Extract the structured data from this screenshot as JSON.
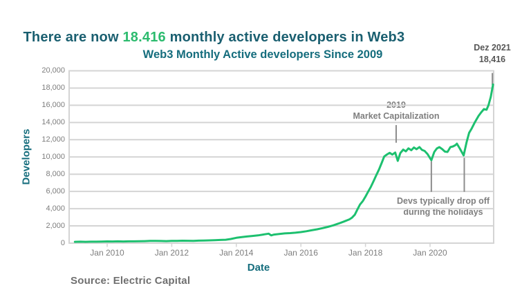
{
  "headline": {
    "part1": "There are now ",
    "highlight": "18.416",
    "part2": " monthly active developers in Web3"
  },
  "source_note": "Source: Electric Capital",
  "colors": {
    "headline_teal": "#1a5f70",
    "headline_green": "#2cbb6e",
    "title_teal": "#156d7d",
    "line_green": "#1dc06f",
    "gridline_gray": "#d4d4d4",
    "tick_gray": "#7d7d7d",
    "annotation_gray": "#8c8c8c",
    "corner_note_gray": "#565656"
  },
  "chart_data": {
    "type": "line",
    "title": "Web3 Monthly Active developers Since 2009",
    "xlabel": "Date",
    "ylabel": "Developers",
    "ylim": [
      0,
      20000
    ],
    "xlim": [
      2008.82,
      2021.97
    ],
    "grid": "horizontal",
    "legend": "none",
    "y_ticks": [
      {
        "value": 0,
        "label": "0"
      },
      {
        "value": 2000,
        "label": "2,000"
      },
      {
        "value": 4000,
        "label": "4,000"
      },
      {
        "value": 6000,
        "label": "6,000"
      },
      {
        "value": 8000,
        "label": "8,000"
      },
      {
        "value": 10000,
        "label": "10,000"
      },
      {
        "value": 12000,
        "label": "12,000"
      },
      {
        "value": 14000,
        "label": "14,000"
      },
      {
        "value": 16000,
        "label": "16,000"
      },
      {
        "value": 18000,
        "label": "18,000"
      },
      {
        "value": 20000,
        "label": "20,000"
      }
    ],
    "x_ticks": [
      {
        "year": 2010,
        "label": "Jan 2010"
      },
      {
        "year": 2012,
        "label": "Jan 2012"
      },
      {
        "year": 2014,
        "label": "Jan 2014"
      },
      {
        "year": 2016,
        "label": "Jan 2016"
      },
      {
        "year": 2018,
        "label": "Jan 2018"
      },
      {
        "year": 2020,
        "label": "Jan 2020"
      }
    ],
    "series": [
      {
        "name": "Web3 monthly active developers",
        "points": [
          [
            2009.0,
            150
          ],
          [
            2009.17,
            165
          ],
          [
            2009.33,
            155
          ],
          [
            2009.5,
            170
          ],
          [
            2009.67,
            165
          ],
          [
            2009.83,
            185
          ],
          [
            2010.0,
            200
          ],
          [
            2010.17,
            190
          ],
          [
            2010.33,
            205
          ],
          [
            2010.5,
            195
          ],
          [
            2010.67,
            210
          ],
          [
            2010.83,
            205
          ],
          [
            2011.0,
            220
          ],
          [
            2011.17,
            235
          ],
          [
            2011.33,
            255
          ],
          [
            2011.5,
            265
          ],
          [
            2011.67,
            245
          ],
          [
            2011.83,
            235
          ],
          [
            2012.0,
            255
          ],
          [
            2012.17,
            265
          ],
          [
            2012.33,
            280
          ],
          [
            2012.5,
            270
          ],
          [
            2012.67,
            265
          ],
          [
            2012.83,
            285
          ],
          [
            2013.0,
            305
          ],
          [
            2013.17,
            320
          ],
          [
            2013.33,
            345
          ],
          [
            2013.5,
            365
          ],
          [
            2013.67,
            390
          ],
          [
            2013.83,
            480
          ],
          [
            2014.0,
            620
          ],
          [
            2014.17,
            700
          ],
          [
            2014.33,
            770
          ],
          [
            2014.5,
            830
          ],
          [
            2014.67,
            900
          ],
          [
            2014.83,
            990
          ],
          [
            2015.0,
            1100
          ],
          [
            2015.08,
            900
          ],
          [
            2015.17,
            990
          ],
          [
            2015.33,
            1060
          ],
          [
            2015.5,
            1130
          ],
          [
            2015.67,
            1160
          ],
          [
            2015.83,
            1210
          ],
          [
            2016.0,
            1280
          ],
          [
            2016.17,
            1380
          ],
          [
            2016.33,
            1490
          ],
          [
            2016.5,
            1600
          ],
          [
            2016.67,
            1740
          ],
          [
            2016.83,
            1880
          ],
          [
            2017.0,
            2060
          ],
          [
            2017.17,
            2280
          ],
          [
            2017.33,
            2500
          ],
          [
            2017.5,
            2760
          ],
          [
            2017.58,
            2950
          ],
          [
            2017.67,
            3300
          ],
          [
            2017.75,
            3900
          ],
          [
            2017.83,
            4480
          ],
          [
            2017.92,
            4900
          ],
          [
            2018.0,
            5400
          ],
          [
            2018.08,
            5950
          ],
          [
            2018.17,
            6550
          ],
          [
            2018.25,
            7200
          ],
          [
            2018.33,
            7850
          ],
          [
            2018.42,
            8550
          ],
          [
            2018.5,
            9300
          ],
          [
            2018.58,
            10050
          ],
          [
            2018.67,
            10300
          ],
          [
            2018.75,
            10480
          ],
          [
            2018.83,
            10280
          ],
          [
            2018.92,
            10520
          ],
          [
            2019.0,
            9550
          ],
          [
            2019.08,
            10450
          ],
          [
            2019.17,
            10850
          ],
          [
            2019.25,
            10650
          ],
          [
            2019.33,
            11000
          ],
          [
            2019.42,
            10780
          ],
          [
            2019.5,
            11100
          ],
          [
            2019.58,
            10900
          ],
          [
            2019.67,
            11150
          ],
          [
            2019.75,
            10820
          ],
          [
            2019.83,
            10700
          ],
          [
            2019.92,
            10340
          ],
          [
            2020.04,
            9620
          ],
          [
            2020.13,
            10580
          ],
          [
            2020.21,
            10980
          ],
          [
            2020.29,
            11140
          ],
          [
            2020.38,
            10900
          ],
          [
            2020.46,
            10620
          ],
          [
            2020.54,
            10580
          ],
          [
            2020.63,
            11140
          ],
          [
            2020.71,
            11220
          ],
          [
            2020.79,
            11380
          ],
          [
            2020.83,
            11540
          ],
          [
            2020.92,
            10980
          ],
          [
            2021.04,
            10180
          ],
          [
            2021.13,
            11700
          ],
          [
            2021.21,
            12800
          ],
          [
            2021.29,
            13300
          ],
          [
            2021.38,
            13960
          ],
          [
            2021.5,
            14760
          ],
          [
            2021.58,
            15160
          ],
          [
            2021.67,
            15560
          ],
          [
            2021.75,
            15480
          ],
          [
            2021.81,
            16000
          ],
          [
            2021.88,
            16960
          ],
          [
            2021.95,
            18416
          ]
        ]
      }
    ],
    "annotations": [
      {
        "id": "market-cap",
        "text_lines": [
          "2019",
          "Market Capitalization"
        ],
        "year": 2018.95,
        "v_from": 13700,
        "v_to": 11650
      },
      {
        "id": "holiday-drop-2020",
        "text_lines": [
          "Devs typically drop off",
          "during the holidays"
        ],
        "year": 2020.04,
        "v_from": 9500,
        "v_to": 5950
      },
      {
        "id": "holiday-drop-2021",
        "text_lines": [],
        "year": 2021.06,
        "v_from": 9900,
        "v_to": 5950
      },
      {
        "id": "dez-2021",
        "text_lines": [
          "Dez 2021",
          "18,416"
        ],
        "year": 2021.93,
        "v_from": 19750,
        "v_to": 18350
      }
    ]
  }
}
